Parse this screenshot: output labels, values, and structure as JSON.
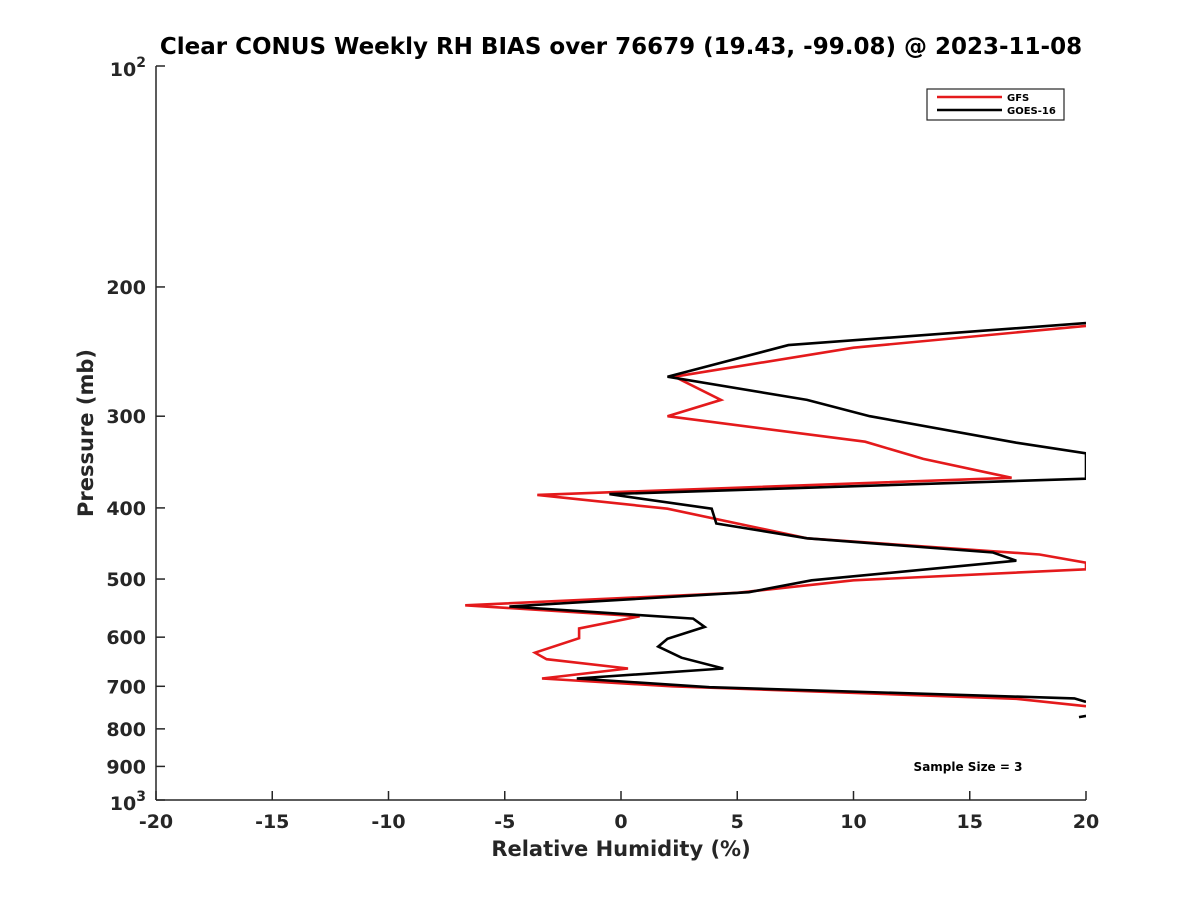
{
  "chart_data": {
    "type": "line",
    "title": "Clear CONUS Weekly RH BIAS over 76679 (19.43, -99.08) @ 2023-11-08",
    "xlabel": "Relative Humidity (%)",
    "ylabel": "Pressure (mb)",
    "xlim": [
      -20,
      20
    ],
    "ylim": [
      100,
      1000
    ],
    "yscale": "log",
    "y_reversed": true,
    "x_ticks": [
      -20,
      -15,
      -10,
      -5,
      0,
      5,
      10,
      15,
      20
    ],
    "x_tick_labels": [
      "-20",
      "-15",
      "-10",
      "-5",
      "0",
      "5",
      "10",
      "15",
      "20"
    ],
    "y_ticks": [
      200,
      300,
      400,
      500,
      600,
      700,
      800,
      900
    ],
    "y_tick_labels": [
      "200",
      "300",
      "400",
      "500",
      "600",
      "700",
      "800",
      "900"
    ],
    "y_tick_exponents": [
      {
        "value": 100,
        "base": "10",
        "exp": "2"
      },
      {
        "value": 1000,
        "base": "10",
        "exp": "3"
      }
    ],
    "grid": false,
    "legend_position": "top-right",
    "annotation": "Sample Size = 3",
    "series": [
      {
        "name": "GFS",
        "color": "#e41a1c",
        "points": [
          [
            20.0,
            226
          ],
          [
            10.0,
            242
          ],
          [
            2.3,
            265
          ],
          [
            4.3,
            285
          ],
          [
            2.0,
            300
          ],
          [
            10.5,
            325
          ],
          [
            13.0,
            343
          ],
          [
            16.8,
            364
          ],
          [
            -3.6,
            384
          ],
          [
            2.0,
            401
          ],
          [
            8.0,
            440
          ],
          [
            18.0,
            463
          ],
          [
            20.0,
            475
          ],
          [
            20.0,
            485
          ],
          [
            10.0,
            502
          ],
          [
            5.0,
            522
          ],
          [
            -6.7,
            543
          ],
          [
            0.8,
            562
          ],
          [
            -1.8,
            584
          ],
          [
            -1.8,
            602
          ],
          [
            -3.7,
            630
          ],
          [
            -3.2,
            643
          ],
          [
            0.3,
            662
          ],
          [
            -3.4,
            683
          ],
          [
            2.2,
            700
          ],
          [
            17.0,
            728
          ],
          [
            20.0,
            745
          ]
        ]
      },
      {
        "name": "GOES-16",
        "color": "#000000",
        "points": [
          [
            20.0,
            224
          ],
          [
            7.2,
            240
          ],
          [
            2.0,
            265
          ],
          [
            8.0,
            285
          ],
          [
            10.7,
            300
          ],
          [
            17.0,
            326
          ],
          [
            20.0,
            337
          ],
          [
            20.0,
            365
          ],
          [
            -0.5,
            383
          ],
          [
            3.9,
            401
          ],
          [
            4.1,
            420
          ],
          [
            8.0,
            440
          ],
          [
            16.0,
            460
          ],
          [
            17.0,
            472
          ],
          [
            8.2,
            502
          ],
          [
            5.5,
            521
          ],
          [
            -4.8,
            545
          ],
          [
            3.1,
            566
          ],
          [
            3.6,
            581
          ],
          [
            2.0,
            603
          ],
          [
            1.6,
            618
          ],
          [
            2.6,
            640
          ],
          [
            4.4,
            662
          ],
          [
            -1.9,
            683
          ],
          [
            3.8,
            702
          ],
          [
            19.5,
            727
          ],
          [
            20.0,
            735
          ]
        ],
        "extra_segment": [
          [
            19.7,
            771
          ],
          [
            20.0,
            768
          ]
        ]
      }
    ]
  }
}
